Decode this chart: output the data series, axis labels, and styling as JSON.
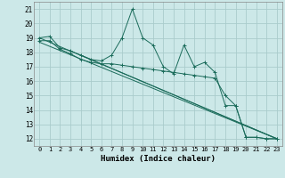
{
  "xlabel": "Humidex (Indice chaleur)",
  "bg_color": "#cce8e8",
  "grid_color": "#aacccc",
  "line_color": "#1a6b5a",
  "xlim": [
    -0.5,
    23.5
  ],
  "ylim": [
    11.5,
    21.5
  ],
  "xticks": [
    0,
    1,
    2,
    3,
    4,
    5,
    6,
    7,
    8,
    9,
    10,
    11,
    12,
    13,
    14,
    15,
    16,
    17,
    18,
    19,
    20,
    21,
    22,
    23
  ],
  "yticks": [
    12,
    13,
    14,
    15,
    16,
    17,
    18,
    19,
    20,
    21
  ],
  "main_x": [
    0,
    1,
    2,
    3,
    4,
    5,
    6,
    7,
    8,
    9,
    10,
    11,
    12,
    13,
    14,
    15,
    16,
    17,
    18,
    19,
    20,
    21,
    22,
    23
  ],
  "main_y": [
    19,
    19.1,
    18.3,
    18.1,
    17.8,
    17.5,
    17.4,
    17.8,
    19.0,
    21.0,
    19.0,
    18.5,
    17.0,
    16.5,
    18.5,
    17.0,
    17.3,
    16.6,
    14.3,
    14.3,
    12.1,
    12.1,
    12.0,
    12.0
  ],
  "line2_x": [
    0,
    1,
    2,
    3,
    4,
    5,
    6,
    7,
    8,
    9,
    10,
    11,
    12,
    13,
    14,
    15,
    16,
    17,
    18,
    19,
    20,
    21,
    22,
    23
  ],
  "line2_y": [
    18.8,
    18.8,
    18.2,
    17.9,
    17.5,
    17.3,
    17.2,
    17.2,
    17.1,
    17.0,
    16.9,
    16.8,
    16.7,
    16.6,
    16.5,
    16.4,
    16.3,
    16.2,
    15.0,
    14.3,
    12.1,
    12.1,
    12.0,
    12.0
  ],
  "trend1_x": [
    0,
    23
  ],
  "trend1_y": [
    19.0,
    12.0
  ],
  "trend2_x": [
    0,
    23
  ],
  "trend2_y": [
    18.7,
    12.0
  ],
  "trend3_x": [
    4,
    23
  ],
  "trend3_y": [
    17.8,
    12.0
  ]
}
